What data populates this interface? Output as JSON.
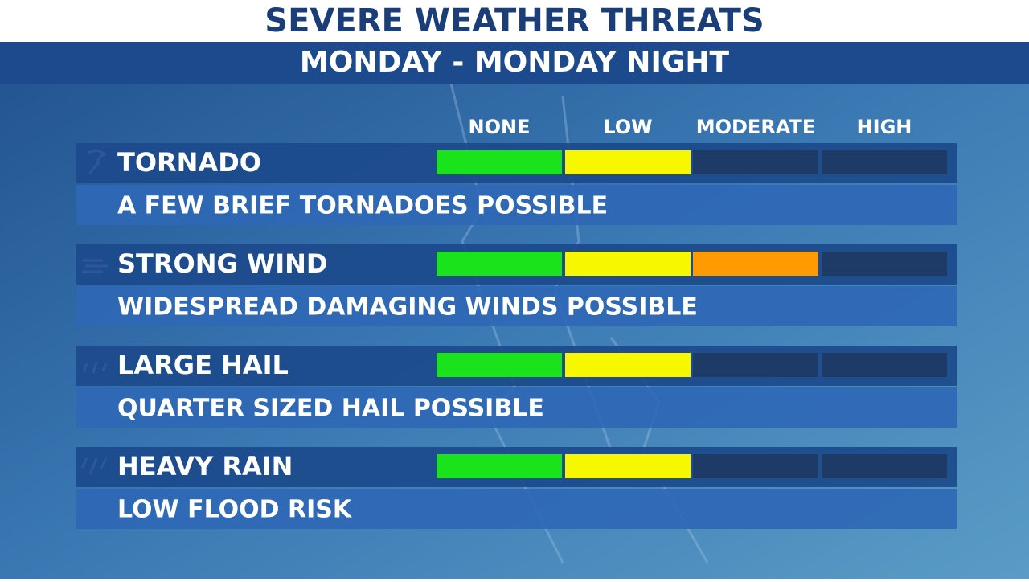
{
  "header": {
    "title": "SEVERE WEATHER THREATS",
    "subtitle": "MONDAY - MONDAY NIGHT"
  },
  "levels": [
    "NONE",
    "LOW",
    "MODERATE",
    "HIGH"
  ],
  "segment_colors": [
    "#1be31b",
    "#f7f700",
    "#ff9a00"
  ],
  "threats": [
    {
      "name": "TORNADO",
      "description": "A FEW BRIEF TORNADOES POSSIBLE",
      "level": 2
    },
    {
      "name": "STRONG WIND",
      "description": "WIDESPREAD DAMAGING WINDS POSSIBLE",
      "level": 3
    },
    {
      "name": "LARGE HAIL",
      "description": "QUARTER SIZED HAIL POSSIBLE",
      "level": 2
    },
    {
      "name": "HEAVY RAIN",
      "description": "LOW FLOOD RISK",
      "level": 2
    }
  ]
}
